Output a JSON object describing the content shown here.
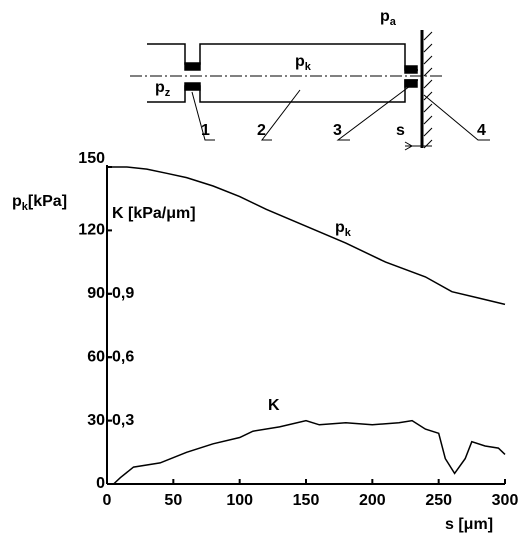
{
  "chart_data": {
    "type": "line",
    "diagram": {
      "pa": {
        "text": "p",
        "sub": "a"
      },
      "pk": {
        "text": "p",
        "sub": "k"
      },
      "pz": {
        "text": "p",
        "sub": "z"
      },
      "labels": [
        "1",
        "2",
        "3",
        "4"
      ],
      "s": "s"
    },
    "y_label": {
      "text": "p",
      "sub": "k",
      "unit": "[kPa]"
    },
    "y2_label": "K [kPa/μm]",
    "x_label": "s [μm]",
    "xlim": [
      0,
      300
    ],
    "xticks": [
      0,
      50,
      100,
      150,
      200,
      250,
      300
    ],
    "ylim": [
      0,
      150
    ],
    "yticks": [
      0,
      30,
      60,
      90,
      120,
      150
    ],
    "y2lim": [
      0,
      1.5
    ],
    "y2ticks": [
      {
        "value": 0.3,
        "label": "0,3"
      },
      {
        "value": 0.6,
        "label": "0,6"
      },
      {
        "value": 0.9,
        "label": "0,9"
      }
    ],
    "series": [
      {
        "name": {
          "text": "p",
          "sub": "k"
        },
        "color": "#000000",
        "x": [
          0,
          15,
          30,
          45,
          60,
          80,
          100,
          120,
          150,
          180,
          210,
          240,
          260,
          280,
          300
        ],
        "values": [
          150,
          150,
          149,
          147,
          145,
          141,
          136,
          130,
          122,
          114,
          105,
          98,
          91,
          88,
          85
        ]
      },
      {
        "name": {
          "text": "K"
        },
        "color": "#000000",
        "axis": "y2",
        "x": [
          5,
          10,
          20,
          40,
          60,
          80,
          100,
          110,
          130,
          150,
          160,
          180,
          200,
          220,
          230,
          240,
          250,
          255,
          262,
          270,
          275,
          285,
          295,
          300
        ],
        "values": [
          0,
          0.03,
          0.08,
          0.1,
          0.15,
          0.19,
          0.22,
          0.25,
          0.27,
          0.3,
          0.28,
          0.29,
          0.28,
          0.29,
          0.3,
          0.26,
          0.24,
          0.12,
          0.05,
          0.12,
          0.2,
          0.18,
          0.17,
          0.14
        ]
      }
    ]
  }
}
